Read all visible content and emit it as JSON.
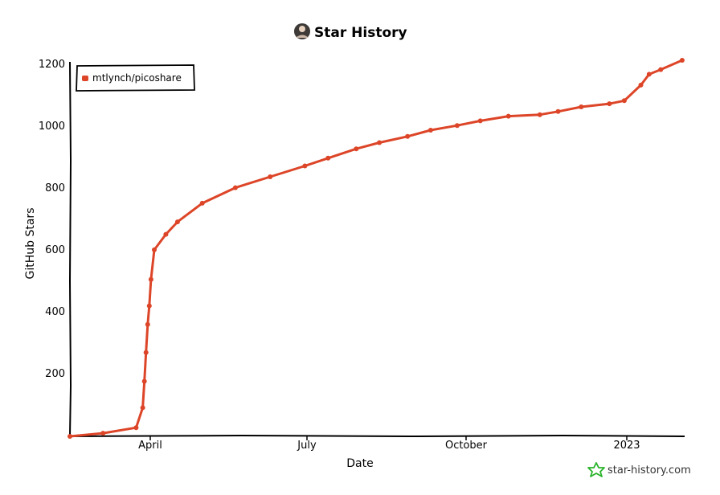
{
  "chart_data": {
    "type": "line",
    "title": "Star History",
    "xlabel": "Date",
    "ylabel": "GitHub Stars",
    "x_tick_labels": [
      "April",
      "July",
      "October",
      "2023"
    ],
    "y_tick_labels": [
      "200",
      "400",
      "600",
      "800",
      "1000",
      "1200"
    ],
    "ylim": [
      0,
      1210
    ],
    "xlim": [
      "2022-02-09",
      "2023-02-15"
    ],
    "grid": false,
    "legend_position": "top-left",
    "series": [
      {
        "name": "mtlynch/picoshare",
        "color": "#dd4528",
        "x": [
          "2022-02-09",
          "2022-03-01",
          "2022-03-21",
          "2022-03-25",
          "2022-03-26",
          "2022-03-27",
          "2022-03-28",
          "2022-03-29",
          "2022-03-30",
          "2022-04-01",
          "2022-04-08",
          "2022-04-15",
          "2022-04-30",
          "2022-05-20",
          "2022-06-10",
          "2022-07-01",
          "2022-07-15",
          "2022-08-01",
          "2022-08-15",
          "2022-09-01",
          "2022-09-15",
          "2022-10-01",
          "2022-10-15",
          "2022-11-01",
          "2022-11-20",
          "2022-12-01",
          "2022-12-15",
          "2023-01-01",
          "2023-01-10",
          "2023-01-20",
          "2023-01-25",
          "2023-02-01",
          "2023-02-14"
        ],
        "y": [
          0,
          10,
          28,
          92,
          177,
          270,
          360,
          420,
          505,
          600,
          650,
          690,
          750,
          800,
          835,
          870,
          895,
          925,
          945,
          965,
          985,
          1000,
          1015,
          1030,
          1035,
          1045,
          1060,
          1070,
          1080,
          1130,
          1165,
          1180,
          1210
        ]
      }
    ]
  },
  "header": {
    "title": "Star History",
    "avatar_icon": "user-avatar-icon"
  },
  "watermark": {
    "text": "star-history.com",
    "icon": "star-icon",
    "color": "#28b328"
  }
}
